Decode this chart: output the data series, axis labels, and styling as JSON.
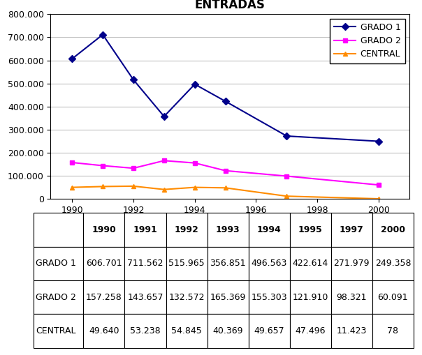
{
  "title": "ENTRADAS",
  "years": [
    1990,
    1991,
    1992,
    1993,
    1994,
    1995,
    1997,
    2000
  ],
  "series": {
    "GRADO 1": [
      606701,
      711562,
      515965,
      356851,
      496563,
      422614,
      271979,
      249358
    ],
    "GRADO 2": [
      157258,
      143657,
      132572,
      165369,
      155303,
      121910,
      98321,
      60091
    ],
    "CENTRAL": [
      49640,
      53238,
      54845,
      40369,
      49657,
      47496,
      11423,
      78
    ]
  },
  "colors": {
    "GRADO 1": "#00008B",
    "GRADO 2": "#FF00FF",
    "CENTRAL": "#FF8C00"
  },
  "markers": {
    "GRADO 1": "D",
    "GRADO 2": "s",
    "CENTRAL": "^"
  },
  "ylim": [
    0,
    800000
  ],
  "yticks": [
    0,
    100000,
    200000,
    300000,
    400000,
    500000,
    600000,
    700000,
    800000
  ],
  "ytick_labels": [
    "0",
    "100.000",
    "200.000",
    "300.000",
    "400.000",
    "500.000",
    "600.000",
    "700.000",
    "800.000"
  ],
  "xticks": [
    1990,
    1992,
    1994,
    1996,
    1998,
    2000
  ],
  "table_columns": [
    "1990",
    "1991",
    "1992",
    "1993",
    "1994",
    "1995",
    "1997",
    "2000"
  ],
  "table_rows": [
    "GRADO 1",
    "GRADO 2",
    "CENTRAL"
  ],
  "table_data": [
    [
      "606.701",
      "711.562",
      "515.965",
      "356.851",
      "496.563",
      "422.614",
      "271.979",
      "249.358"
    ],
    [
      "157.258",
      "143.657",
      "132.572",
      "165.369",
      "155.303",
      "121.910",
      "98.321",
      "60.091"
    ],
    [
      "49.640",
      "53.238",
      "54.845",
      "40.369",
      "49.657",
      "47.496",
      "11.423",
      "78"
    ]
  ],
  "grid_color": "#C0C0C0",
  "background_color": "#FFFFFF"
}
